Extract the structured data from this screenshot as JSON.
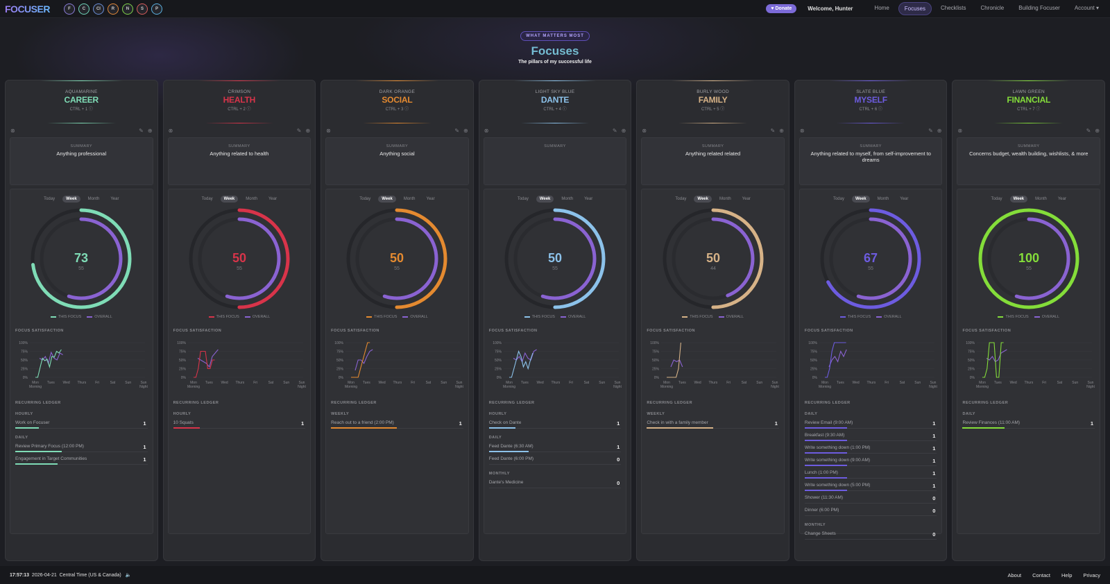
{
  "app": {
    "logo": "FOCUSER"
  },
  "header": {
    "focus_dots": [
      {
        "letter": "F",
        "color": "#8a7cd8"
      },
      {
        "letter": "C",
        "color": "#6fd3b8"
      },
      {
        "letter": "Cl",
        "color": "#6a8ed8"
      },
      {
        "letter": "R",
        "color": "#e0883a"
      },
      {
        "letter": "N",
        "color": "#7fd34a"
      },
      {
        "letter": "S",
        "color": "#d65c5c"
      },
      {
        "letter": "P",
        "color": "#5ab0e0"
      }
    ],
    "donate_label": "Donate",
    "welcome": "Welcome, Hunter",
    "nav": [
      "Home",
      "Focuses",
      "Checklists",
      "Chronicle",
      "Building Focuser",
      "Account"
    ],
    "active_nav": "Focuses"
  },
  "hero": {
    "pill": "WHAT MATTERS MOST",
    "title": "Focuses",
    "subtitle": "The pillars of my successful life"
  },
  "chart_labels": {
    "tabs": [
      "Today",
      "Week",
      "Month",
      "Year"
    ],
    "active_tab": "Week",
    "legend_this": "THIS FOCUS",
    "legend_overall": "OVERALL",
    "satisfaction_title": "FOCUS SATISFACTION",
    "ledger_title": "RECURRING LEDGER",
    "summary_label": "SUMMARY",
    "y_ticks": [
      "100%",
      "75%",
      "50%",
      "25%",
      "0%"
    ],
    "x_ticks": [
      [
        "Mon",
        "Morning"
      ],
      [
        "Tues"
      ],
      [
        "Wed"
      ],
      [
        "Thurs"
      ],
      [
        "Fri"
      ],
      [
        "Sat"
      ],
      [
        "Sun"
      ],
      [
        "Sun",
        "Night"
      ]
    ]
  },
  "focuses": [
    {
      "color_name": "AQUAMARINE",
      "title": "CAREER",
      "hotkey": "CTRL + 1",
      "color": "#7fdcb6",
      "summary": "Anything professional",
      "score": 73,
      "overall": 55,
      "score_fraction": 0.73,
      "overall_fraction": 0.55,
      "satisfaction": [
        0,
        0,
        0.28,
        0.55,
        0.48,
        0.52,
        0.3,
        0.6,
        0.58,
        0.75,
        0.7,
        0.8
      ],
      "overall_line": [
        0.55,
        0.5,
        0.6,
        0.4,
        0.72,
        0.55,
        0.5,
        0.7,
        0.65
      ],
      "ledger": [
        {
          "group": "HOURLY",
          "items": [
            {
              "name": "Work on Focuser",
              "count": "1",
              "fill": 0.18
            }
          ]
        },
        {
          "group": "DAILY",
          "items": [
            {
              "name": "Review Primary Focus (12:00 PM)",
              "count": "1",
              "fill": 0.35
            },
            {
              "name": "Engagement in Target Communities",
              "count": "1",
              "fill": 0.32
            }
          ]
        }
      ]
    },
    {
      "color_name": "CRIMSON",
      "title": "HEALTH",
      "hotkey": "CTRL + 2",
      "color": "#d8344a",
      "summary": "Anything related to health",
      "score": 50,
      "overall": 55,
      "score_fraction": 0.5,
      "overall_fraction": 0.55,
      "satisfaction": [
        0,
        0,
        0.25,
        0.75,
        0.75,
        0.75,
        0.25,
        0.25,
        0.5,
        0.5
      ],
      "overall_line": [
        0.55,
        0.5,
        0.45,
        0.4,
        0.3,
        0.6,
        0.7,
        0.8
      ],
      "ledger": [
        {
          "group": "HOURLY",
          "items": [
            {
              "name": "10 Squats",
              "count": "1",
              "fill": 0.2
            }
          ]
        }
      ]
    },
    {
      "color_name": "DARK ORANGE",
      "title": "SOCIAL",
      "hotkey": "CTRL + 3",
      "color": "#e48a30",
      "summary": "Anything social",
      "score": 50,
      "overall": 55,
      "score_fraction": 0.5,
      "overall_fraction": 0.55,
      "satisfaction": [
        0,
        0,
        0,
        0,
        0.25,
        0.5,
        0.75,
        1,
        1
      ],
      "overall_line": [
        0.2,
        0.5,
        0.5,
        0.4,
        0.6,
        0.75,
        0.8
      ],
      "ledger": [
        {
          "group": "WEEKLY",
          "items": [
            {
              "name": "Reach out to a friend (2:00 PM)",
              "count": "1",
              "fill": 0.5
            }
          ]
        }
      ]
    },
    {
      "color_name": "LIGHT SKY BLUE",
      "title": "DANTE",
      "hotkey": "CTRL + 4",
      "color": "#8cc2ea",
      "summary": "",
      "score": 50,
      "overall": 55,
      "score_fraction": 0.5,
      "overall_fraction": 0.55,
      "satisfaction": [
        0,
        0,
        0.25,
        0.5,
        0.75,
        0.6,
        0.3,
        0.45,
        0.25,
        0.5,
        0.7
      ],
      "overall_line": [
        0.55,
        0.5,
        0.6,
        0.45,
        0.7,
        0.55,
        0.5,
        0.75,
        0.8
      ],
      "ledger": [
        {
          "group": "HOURLY",
          "items": [
            {
              "name": "Check on Dante",
              "count": "1",
              "fill": 0.2
            }
          ]
        },
        {
          "group": "DAILY",
          "items": [
            {
              "name": "Feed Dante (6:30 AM)",
              "count": "1",
              "fill": 0.3
            },
            {
              "name": "Feed Dante (6:00 PM)",
              "count": "0",
              "fill": 0
            }
          ]
        },
        {
          "group": "MONTHLY",
          "items": [
            {
              "name": "Dante's Medicine",
              "count": "0",
              "fill": 0
            }
          ]
        }
      ]
    },
    {
      "color_name": "BURLY WOOD",
      "title": "FAMILY",
      "hotkey": "CTRL + 5",
      "color": "#d6b287",
      "summary": "Anything related related",
      "score": 50,
      "overall": 44,
      "score_fraction": 0.5,
      "overall_fraction": 0.44,
      "satisfaction": [
        0,
        0,
        0,
        0,
        0,
        0.25,
        1
      ],
      "overall_line": [
        0.3,
        0.5,
        0.45,
        0.5,
        0.3
      ],
      "ledger": [
        {
          "group": "WEEKLY",
          "items": [
            {
              "name": "Check in with a family member",
              "count": "1",
              "fill": 0.5
            }
          ]
        }
      ]
    },
    {
      "color_name": "SLATE BLUE",
      "title": "MYSELF",
      "hotkey": "CTRL + 6",
      "color": "#6d5ce0",
      "summary": "Anything related to myself, from self-improvement to dreams",
      "score": 67,
      "overall": 55,
      "score_fraction": 0.67,
      "overall_fraction": 0.55,
      "satisfaction": [
        0,
        0,
        0.25,
        0.75,
        1,
        1,
        1,
        1,
        1,
        1
      ],
      "overall_line": [
        0.3,
        0.5,
        0.6,
        0.45,
        0.75,
        0.6,
        0.8
      ],
      "ledger": [
        {
          "group": "DAILY",
          "items": [
            {
              "name": "Review Email (9:00 AM)",
              "count": "1",
              "fill": 0.32
            },
            {
              "name": "Breakfast (9:30 AM)",
              "count": "1",
              "fill": 0.32
            },
            {
              "name": "Write something down (1:00 PM)",
              "count": "1",
              "fill": 0.32
            },
            {
              "name": "Write something down (9:00 AM)",
              "count": "1",
              "fill": 0.32
            },
            {
              "name": "Lunch (1:00 PM)",
              "count": "1",
              "fill": 0.32
            },
            {
              "name": "Write something down (5:00 PM)",
              "count": "1",
              "fill": 0.32
            },
            {
              "name": "Shower (11:30 AM)",
              "count": "0",
              "fill": 0
            },
            {
              "name": "Dinner (6:00 PM)",
              "count": "0",
              "fill": 0
            }
          ]
        },
        {
          "group": "MONTHLY",
          "items": [
            {
              "name": "Change Sheets",
              "count": "0",
              "fill": 0
            }
          ]
        }
      ]
    },
    {
      "color_name": "LAWN GREEN",
      "title": "FINANCIAL",
      "hotkey": "CTRL + 7",
      "color": "#84dd3a",
      "summary": "Concerns budget, wealth building, wishlists, & more",
      "score": 100,
      "overall": 55,
      "score_fraction": 1.0,
      "overall_fraction": 0.55,
      "satisfaction": [
        0,
        0,
        0.25,
        1,
        1,
        1,
        0,
        0,
        1,
        1
      ],
      "overall_line": [
        0.55,
        0.5,
        0.6,
        0.45,
        0.5,
        0.7,
        0.75,
        0.8
      ],
      "ledger": [
        {
          "group": "DAILY",
          "items": [
            {
              "name": "Review Finances (11:00 AM)",
              "count": "1",
              "fill": 0.32
            }
          ]
        }
      ]
    }
  ],
  "overall_color": "#8a63d2",
  "footer": {
    "time": "17:57:13",
    "date": "2026-04-21",
    "timezone": "Central Time (US & Canada)",
    "links": [
      "About",
      "Contact",
      "Help",
      "Privacy"
    ]
  }
}
